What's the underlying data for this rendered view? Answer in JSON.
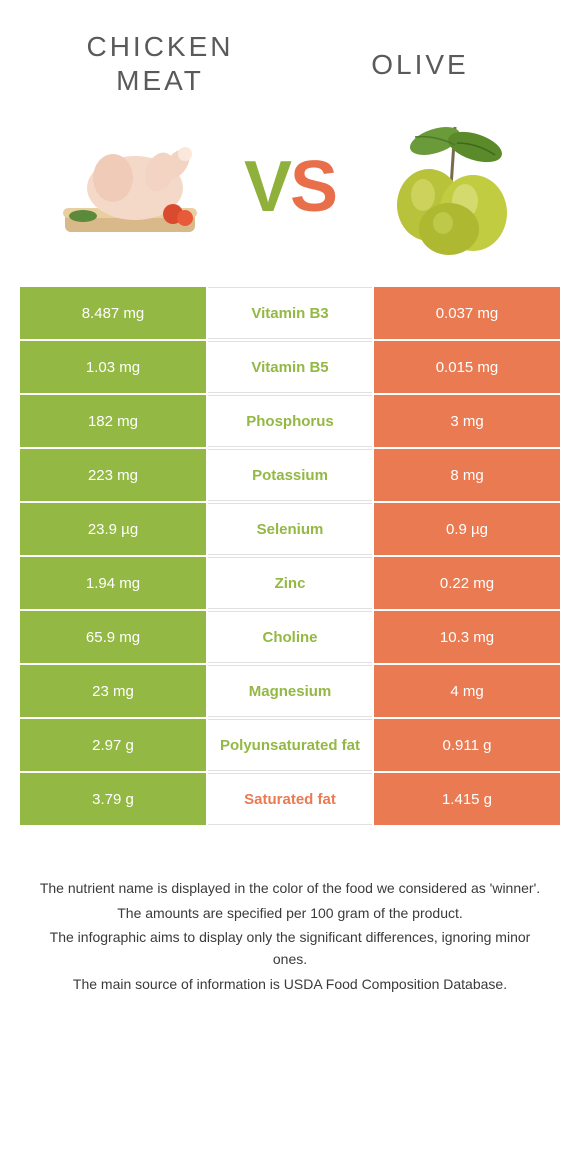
{
  "header": {
    "left_title_line1": "Chicken",
    "left_title_line2": "meat",
    "right_title": "Olive",
    "vs_v": "V",
    "vs_s": "S"
  },
  "colors": {
    "green": "#93b843",
    "orange": "#e97a52",
    "mid_green_text": "#93b843",
    "mid_orange_text": "#e97a52"
  },
  "rows": [
    {
      "left": "8.487 mg",
      "mid": "Vitamin B3",
      "right": "0.037 mg",
      "winner": "left"
    },
    {
      "left": "1.03 mg",
      "mid": "Vitamin B5",
      "right": "0.015 mg",
      "winner": "left"
    },
    {
      "left": "182 mg",
      "mid": "Phosphorus",
      "right": "3 mg",
      "winner": "left"
    },
    {
      "left": "223 mg",
      "mid": "Potassium",
      "right": "8 mg",
      "winner": "left"
    },
    {
      "left": "23.9 µg",
      "mid": "Selenium",
      "right": "0.9 µg",
      "winner": "left"
    },
    {
      "left": "1.94 mg",
      "mid": "Zinc",
      "right": "0.22 mg",
      "winner": "left"
    },
    {
      "left": "65.9 mg",
      "mid": "Choline",
      "right": "10.3 mg",
      "winner": "left"
    },
    {
      "left": "23 mg",
      "mid": "Magnesium",
      "right": "4 mg",
      "winner": "left"
    },
    {
      "left": "2.97 g",
      "mid": "Polyunsaturated fat",
      "right": "0.911 g",
      "winner": "left"
    },
    {
      "left": "3.79 g",
      "mid": "Saturated fat",
      "right": "1.415 g",
      "winner": "right"
    }
  ],
  "footnotes": [
    "The nutrient name is displayed in the color of the food we considered as 'winner'.",
    "The amounts are specified per 100 gram of the product.",
    "The infographic aims to display only the significant differences, ignoring minor ones.",
    "The main source of information is USDA Food Composition Database."
  ]
}
